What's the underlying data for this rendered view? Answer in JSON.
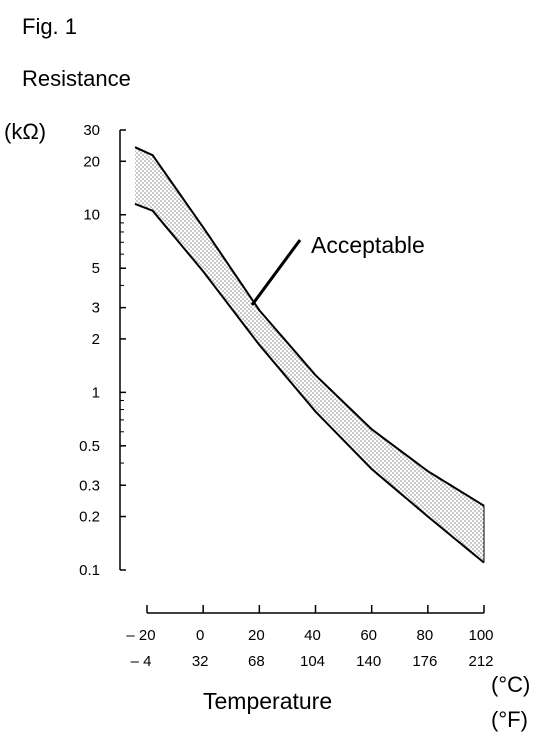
{
  "figure_label": "Fig. 1",
  "chart_data": {
    "type": "area",
    "title": "Resistance",
    "ylabel": "(kΩ)",
    "xlabel": "Temperature",
    "x_units": [
      "(°C)",
      "(°F)"
    ],
    "y_scale": "log",
    "ylim": [
      0.1,
      30
    ],
    "xlim": [
      -20,
      100
    ],
    "y_ticks_labeled": [
      "30",
      "20",
      "10",
      "5",
      "3",
      "2",
      "1",
      "0.5",
      "0.3",
      "0.2",
      "0.1"
    ],
    "y_tick_values": [
      30,
      20,
      10,
      5,
      3,
      2,
      1,
      0.5,
      0.3,
      0.2,
      0.1
    ],
    "x_ticks_c": [
      "– 20",
      "0",
      "20",
      "40",
      "60",
      "80",
      "100"
    ],
    "x_ticks_f": [
      "– 4",
      "32",
      "68",
      "104",
      "140",
      "176",
      "212"
    ],
    "x_tick_values": [
      -20,
      0,
      20,
      40,
      60,
      80,
      100
    ],
    "annotation": "Acceptable",
    "grid": false,
    "series": [
      {
        "name": "upper",
        "x": [
          -20,
          0,
          20,
          40,
          60,
          80,
          100
        ],
        "y": [
          24,
          8.5,
          2.9,
          1.25,
          0.62,
          0.36,
          0.23
        ]
      },
      {
        "name": "lower",
        "x": [
          -20,
          0,
          20,
          40,
          60,
          80,
          100
        ],
        "y": [
          11.5,
          4.8,
          1.85,
          0.78,
          0.37,
          0.2,
          0.11
        ]
      }
    ],
    "band_color": "#9a9a9a"
  }
}
